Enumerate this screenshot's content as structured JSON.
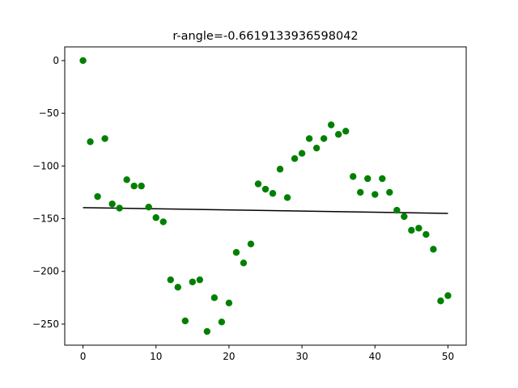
{
  "chart_data": {
    "type": "scatter",
    "title": "r-angle=-0.6619133936598042",
    "xlabel": "",
    "ylabel": "",
    "xlim": [
      -2.5,
      52.5
    ],
    "ylim": [
      -270,
      13
    ],
    "xticks": [
      0,
      10,
      20,
      30,
      40,
      50
    ],
    "yticks": [
      0,
      -50,
      -100,
      -150,
      -200,
      -250
    ],
    "grid": false,
    "legend": "none",
    "point_color": "#008000",
    "line_color": "#000000",
    "series": [
      {
        "type": "scatter",
        "x": [
          0,
          1,
          2,
          3,
          4,
          5,
          6,
          7,
          8,
          9,
          10,
          11,
          12,
          13,
          14,
          15,
          16,
          17,
          18,
          19,
          20,
          21,
          22,
          23,
          24,
          25,
          26,
          27,
          28,
          29,
          30,
          31,
          32,
          33,
          34,
          35,
          36,
          37,
          38,
          39,
          40,
          41,
          42,
          43,
          44,
          45,
          46,
          47,
          48,
          49,
          50
        ],
        "y": [
          0,
          -77,
          -129,
          -74,
          -136,
          -140,
          -113,
          -119,
          -119,
          -139,
          -149,
          -153,
          -208,
          -215,
          -247,
          -210,
          -208,
          -257,
          -225,
          -248,
          -230,
          -182,
          -192,
          -174,
          -117,
          -122,
          -126,
          -103,
          -130,
          -93,
          -88,
          -74,
          -83,
          -74,
          -61,
          -70,
          -67,
          -110,
          -125,
          -112,
          -127,
          -112,
          -125,
          -142,
          -148,
          -161,
          -159,
          -165,
          -179,
          -228,
          -223
        ]
      },
      {
        "type": "line",
        "x": [
          0,
          50
        ],
        "y": [
          -139.5,
          -145
        ]
      }
    ]
  }
}
